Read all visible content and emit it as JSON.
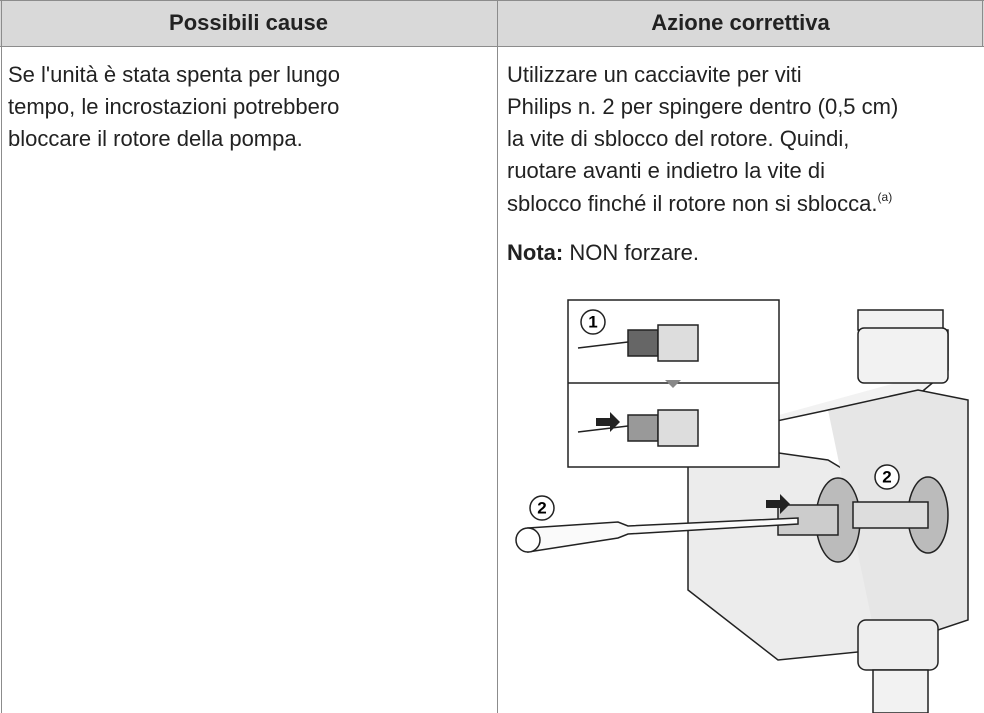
{
  "table": {
    "headers": [
      "Possibili cause",
      "Azione correttiva"
    ],
    "cause_lines": [
      "Se l'unità è stata spenta per lungo",
      "tempo, le incrostazioni potrebbero",
      "bloccare il rotore della pompa."
    ],
    "action_lines": [
      "Utilizzare un cacciavite per viti",
      "Philips n. 2 per spingere dentro (0,5 cm)",
      "la vite di sblocco del rotore. Quindi,",
      "ruotare avanti e indietro la vite di",
      "sblocco finché il rotore non si sblocca."
    ],
    "footnote_ref": "(a)",
    "note": {
      "label": "Nota:",
      "text": "NON forzare."
    },
    "figure_callouts": [
      "1",
      "2",
      "2"
    ]
  }
}
